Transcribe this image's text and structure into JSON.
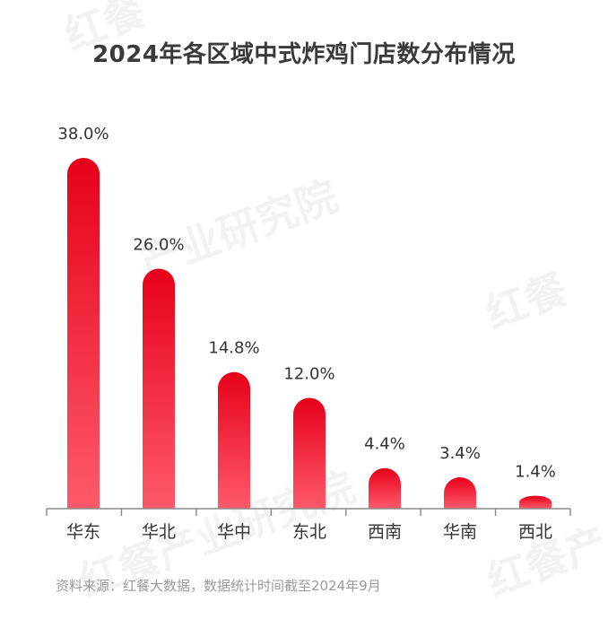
{
  "title": "2024年各区域中式炸鸡门店数分布情况",
  "source": "资料来源：红餐大数据，数据统计时间截至2024年9月",
  "watermarks": [
    "红餐",
    "产业研究院",
    "红餐产业研究院",
    "红餐",
    "红餐产"
  ],
  "colors": {
    "bar_top": "#e6001a",
    "bar_bottom": "#ff5a6a",
    "axis": "#8a8a8a",
    "label": "#333333"
  },
  "chart_data": {
    "type": "bar",
    "categories": [
      "华东",
      "华北",
      "华中",
      "东北",
      "西南",
      "华南",
      "西北"
    ],
    "values": [
      38.0,
      26.0,
      14.8,
      12.0,
      4.4,
      3.4,
      1.4
    ],
    "labels": [
      "38.0%",
      "26.0%",
      "14.8%",
      "12.0%",
      "4.4%",
      "3.4%",
      "1.4%"
    ],
    "ylim": [
      0,
      38.0
    ],
    "grid": false
  }
}
